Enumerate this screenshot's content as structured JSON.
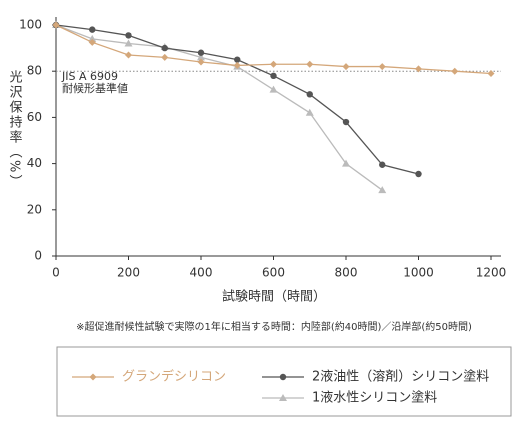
{
  "chart_data": {
    "type": "line",
    "y_label": "光沢保持率（%）",
    "x_label": "試験時間（時間）",
    "note": "※超促進耐候性試験で実際の1年に相当する時間：内陸部(約40時間)／沿岸部(約50時間)",
    "xlim": [
      0,
      1200
    ],
    "xticks": [
      0,
      200,
      400,
      600,
      800,
      1000,
      1200
    ],
    "ylim": [
      0,
      100
    ],
    "yticks": [
      0,
      20,
      40,
      60,
      80,
      100
    ],
    "grid": false,
    "reference_line": {
      "value": 80,
      "label": [
        "JIS A 6909",
        "耐候形基準値"
      ]
    },
    "series": [
      {
        "name": "グランデシリコン",
        "color": "#d4a77a",
        "marker": "diamond",
        "x": [
          0,
          100,
          200,
          300,
          400,
          500,
          600,
          700,
          800,
          900,
          1000,
          1100,
          1200
        ],
        "values": [
          100,
          92.5,
          87,
          86,
          84,
          82.5,
          83,
          83,
          82,
          82,
          81,
          80,
          79
        ]
      },
      {
        "name": "2液油性（溶剤）シリコン塗料",
        "color": "#555555",
        "marker": "circle",
        "x": [
          0,
          100,
          200,
          300,
          400,
          500,
          600,
          700,
          800,
          900,
          1000
        ],
        "values": [
          100,
          98,
          95.5,
          90,
          88,
          85,
          78,
          70,
          58,
          39.5,
          35.5
        ]
      },
      {
        "name": "1液水性シリコン塗料",
        "color": "#bbbbbb",
        "marker": "triangle",
        "x": [
          0,
          100,
          200,
          300,
          400,
          500,
          600,
          700,
          800,
          900
        ],
        "values": [
          100,
          94,
          92,
          90.5,
          86,
          82,
          72,
          62,
          40,
          28.5
        ]
      }
    ]
  }
}
